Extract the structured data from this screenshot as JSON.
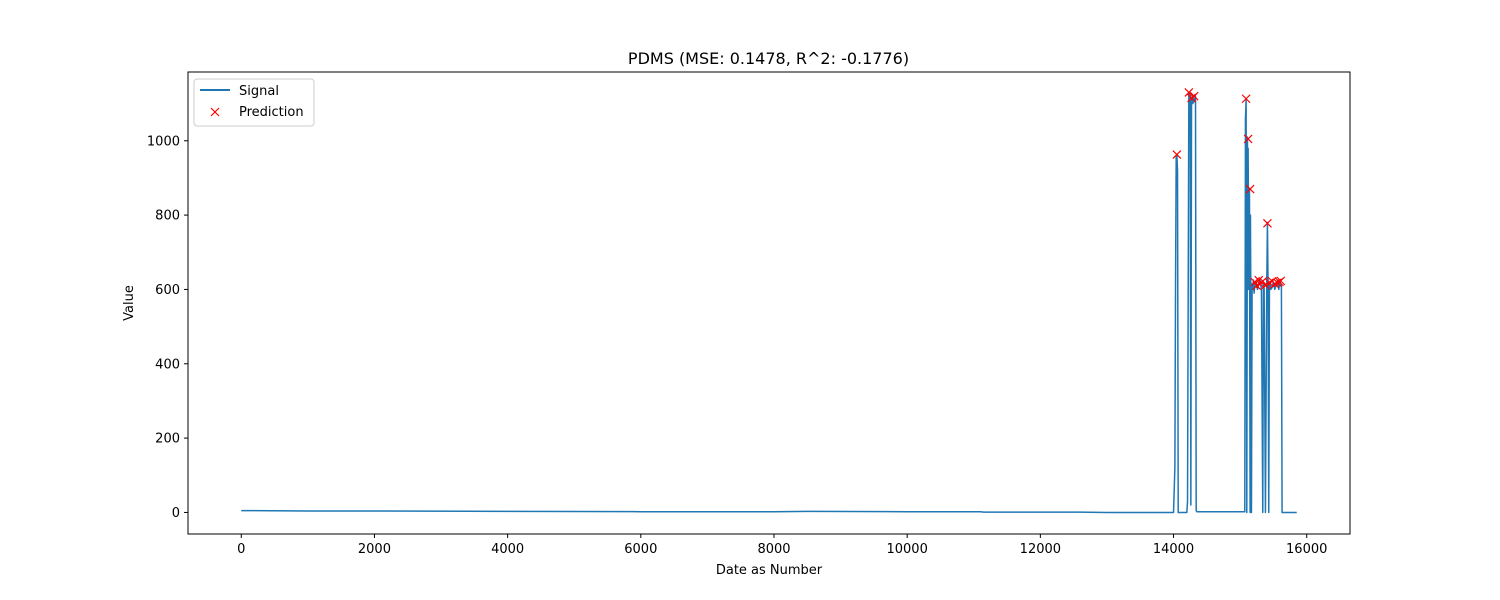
{
  "chart_data": {
    "type": "line",
    "title": "PDMS (MSE: 0.1478, R^2: -0.1776)",
    "xlabel": "Date as Number",
    "ylabel": "Value",
    "xlim": [
      -800,
      16650
    ],
    "ylim": [
      -58,
      1185
    ],
    "xticks": [
      0,
      2000,
      4000,
      6000,
      8000,
      10000,
      12000,
      14000,
      16000
    ],
    "yticks": [
      0,
      200,
      400,
      600,
      800,
      1000
    ],
    "legend_position": "upper-left",
    "grid": false,
    "colors": {
      "signal": "#1f77b4",
      "prediction": "#ff0000"
    },
    "series": [
      {
        "name": "Signal",
        "kind": "line",
        "x": [
          0,
          1000,
          2000,
          4000,
          6000,
          8000,
          8500,
          10000,
          11100,
          11150,
          12000,
          12600,
          13000,
          14000,
          14020,
          14030,
          14040,
          14050,
          14060,
          14070,
          14080,
          14200,
          14210,
          14230,
          14240,
          14250,
          14260,
          14270,
          14280,
          14290,
          14300,
          14310,
          14330,
          14340,
          14350,
          15070,
          15080,
          15090,
          15100,
          15110,
          15115,
          15120,
          15130,
          15140,
          15150,
          15155,
          15160,
          15170,
          15180,
          15190,
          15200,
          15210,
          15215,
          15220,
          15240,
          15260,
          15280,
          15300,
          15320,
          15340,
          15350,
          15360,
          15380,
          15400,
          15410,
          15420,
          15430,
          15440,
          15450,
          15460,
          15480,
          15500,
          15520,
          15540,
          15560,
          15580,
          15600,
          15610,
          15620,
          15630,
          15850
        ],
        "y": [
          5,
          4,
          4,
          3,
          2,
          2,
          3,
          2,
          2,
          1,
          1,
          1,
          0,
          0,
          120,
          600,
          960,
          960,
          920,
          0,
          0,
          0,
          30,
          1130,
          1100,
          1125,
          20,
          1110,
          1120,
          1100,
          1115,
          1105,
          1120,
          5,
          2,
          2,
          1060,
          1110,
          0,
          1010,
          600,
          980,
          600,
          870,
          0,
          800,
          600,
          0,
          615,
          600,
          625,
          590,
          600,
          610,
          620,
          600,
          615,
          625,
          600,
          0,
          620,
          615,
          0,
          610,
          780,
          600,
          0,
          615,
          620,
          600,
          605,
          620,
          600,
          610,
          625,
          600,
          620,
          615,
          610,
          0,
          0
        ]
      },
      {
        "name": "Prediction",
        "kind": "scatter",
        "marker": "x",
        "x": [
          14050,
          14230,
          14270,
          14310,
          15090,
          15120,
          15150,
          15220,
          15250,
          15280,
          15300,
          15340,
          15380,
          15410,
          15440,
          15480,
          15520,
          15560,
          15590,
          15610
        ],
        "y": [
          963,
          1130,
          1115,
          1120,
          1113,
          1005,
          870,
          620,
          610,
          625,
          615,
          622,
          612,
          778,
          618,
          622,
          615,
          618,
          620,
          623
        ]
      }
    ]
  }
}
